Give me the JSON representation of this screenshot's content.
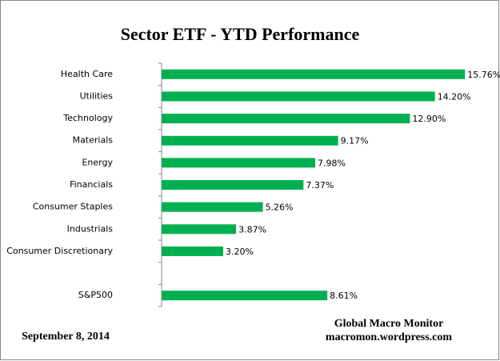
{
  "chart_data": {
    "type": "hbar",
    "title": "Sector ETF - YTD  Performance",
    "categories": [
      "Health Care",
      "Utilities",
      "Technology",
      "Materials",
      "Energy",
      "Financials",
      "Consumer Staples",
      "Industrials",
      "Consumer Discretionary",
      null,
      "S&P500"
    ],
    "values": [
      15.76,
      14.2,
      12.9,
      9.17,
      7.98,
      7.37,
      5.26,
      3.87,
      3.2,
      null,
      8.61
    ],
    "value_labels": [
      "15.76%",
      "14.20%",
      "12.90%",
      "9.17%",
      "7.98%",
      "7.37%",
      "5.26%",
      "3.87%",
      "3.20%",
      null,
      "8.61%"
    ],
    "color": "#00b050",
    "xlim": [
      0,
      16
    ],
    "annotations": [
      "September 8,  2014",
      "Global Macro Monitor",
      "macromon.wordpress.com"
    ]
  }
}
